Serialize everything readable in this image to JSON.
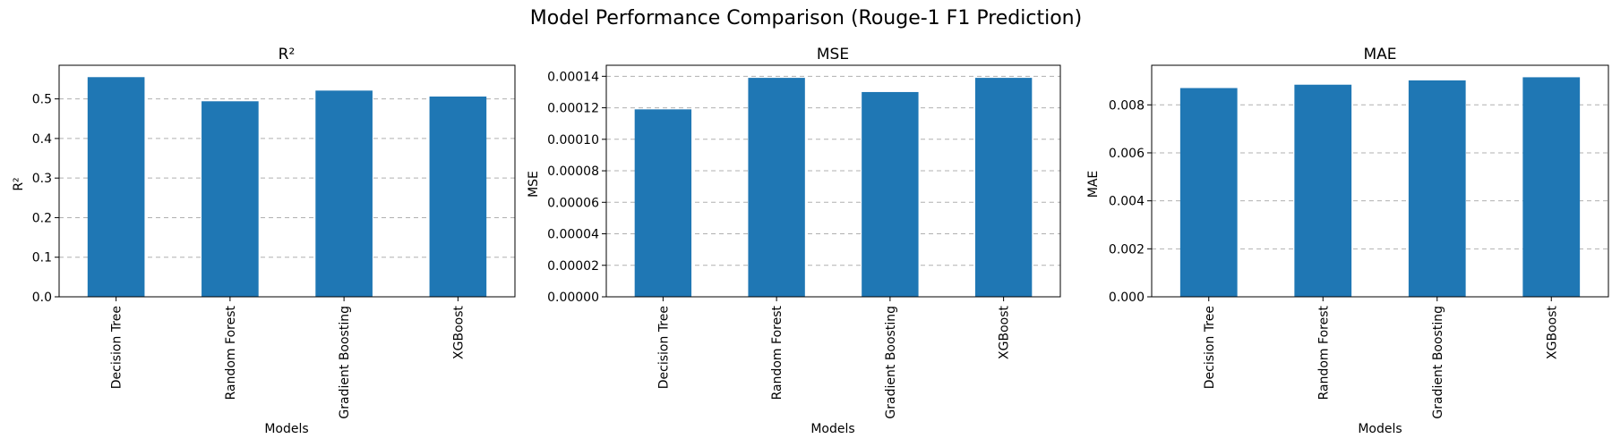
{
  "figure": {
    "title": "Model Performance Comparison (Rouge-1 F1 Prediction)"
  },
  "chart_data": [
    {
      "type": "bar",
      "title": "R²",
      "xlabel": "Models",
      "ylabel": "R²",
      "categories": [
        "Decision Tree",
        "Random Forest",
        "Gradient Boosting",
        "XGBoost"
      ],
      "values": [
        0.555,
        0.494,
        0.521,
        0.506
      ],
      "ylim": [
        0,
        0.585
      ],
      "yticks": [
        "0.0",
        "0.1",
        "0.2",
        "0.3",
        "0.4",
        "0.5"
      ],
      "ytick_values": [
        0,
        0.1,
        0.2,
        0.3,
        0.4,
        0.5
      ],
      "grid": "y-dashed",
      "color": "#1f77b4"
    },
    {
      "type": "bar",
      "title": "MSE",
      "xlabel": "Models",
      "ylabel": "MSE",
      "categories": [
        "Decision Tree",
        "Random Forest",
        "Gradient Boosting",
        "XGBoost"
      ],
      "values": [
        0.000119,
        0.000139,
        0.00013,
        0.000139
      ],
      "ylim": [
        0,
        0.000147
      ],
      "yticks": [
        "0.00000",
        "0.00002",
        "0.00004",
        "0.00006",
        "0.00008",
        "0.00010",
        "0.00012",
        "0.00014"
      ],
      "ytick_values": [
        0,
        2e-05,
        4e-05,
        6e-05,
        8e-05,
        0.0001,
        0.00012,
        0.00014
      ],
      "grid": "y-dashed",
      "color": "#1f77b4"
    },
    {
      "type": "bar",
      "title": "MAE",
      "xlabel": "Models",
      "ylabel": "MAE",
      "categories": [
        "Decision Tree",
        "Random Forest",
        "Gradient Boosting",
        "XGBoost"
      ],
      "values": [
        0.0087,
        0.00884,
        0.00902,
        0.00915
      ],
      "ylim": [
        0,
        0.00965
      ],
      "yticks": [
        "0.000",
        "0.002",
        "0.004",
        "0.006",
        "0.008"
      ],
      "ytick_values": [
        0,
        0.002,
        0.004,
        0.006,
        0.008
      ],
      "grid": "y-dashed",
      "color": "#1f77b4"
    }
  ]
}
